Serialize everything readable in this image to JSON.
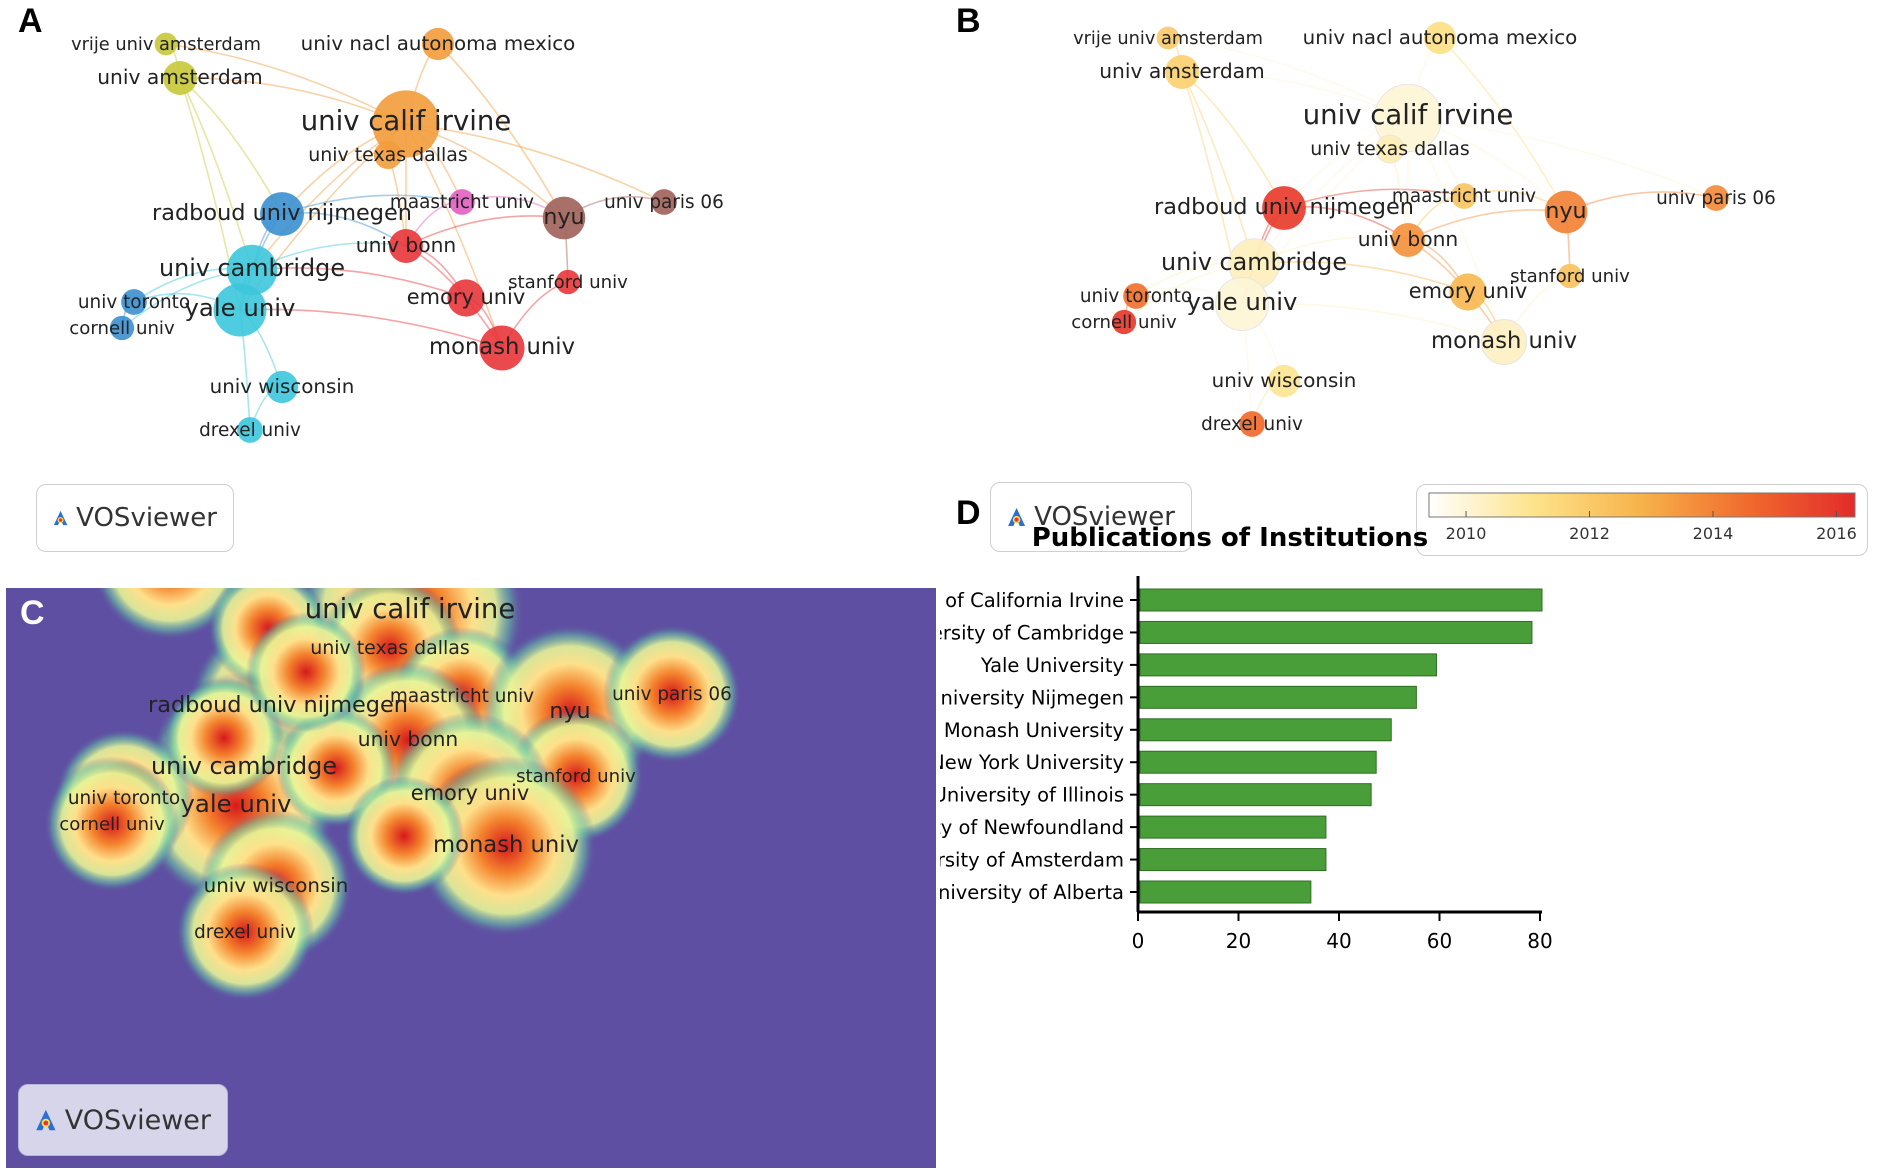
{
  "panels": {
    "a": {
      "letter": "A"
    },
    "b": {
      "letter": "B"
    },
    "c": {
      "letter": "C"
    },
    "d": {
      "letter": "D"
    }
  },
  "vosviewer": {
    "label": "VOSviewer"
  },
  "network": {
    "cluster_colors": {
      "orange": "#f39c3c",
      "yellow": "#c8c83a",
      "blue": "#3a8fd0",
      "cyan": "#3cc6dc",
      "green": "#46b84a",
      "purple": "#b07ce0",
      "red": "#e8353a",
      "brown": "#a0605a",
      "pink": "#e060c0"
    },
    "nodes": [
      {
        "id": "vrije",
        "label": "vrije univ amsterdam",
        "cluster": "yellow",
        "weight": 4,
        "year": 2012.0
      },
      {
        "id": "amsterdam",
        "label": "univ amsterdam",
        "cluster": "yellow",
        "weight": 14,
        "year": 2011.8
      },
      {
        "id": "nacl",
        "label": "univ nacl autonoma mexico",
        "cluster": "orange",
        "weight": 12,
        "year": 2011.2
      },
      {
        "id": "irvine",
        "label": "univ calif irvine",
        "cluster": "orange",
        "weight": 80,
        "year": 2010.0
      },
      {
        "id": "texas",
        "label": "univ texas dallas",
        "cluster": "orange",
        "weight": 8,
        "year": 2010.5
      },
      {
        "id": "radboud",
        "label": "radboud univ nijmegen",
        "cluster": "blue",
        "weight": 28,
        "year": 2015.8
      },
      {
        "id": "maastricht",
        "label": "maastricht univ",
        "cluster": "pink",
        "weight": 6,
        "year": 2012.2
      },
      {
        "id": "nyu",
        "label": "nyu",
        "cluster": "brown",
        "weight": 26,
        "year": 2014.0
      },
      {
        "id": "paris",
        "label": "univ paris 06",
        "cluster": "brown",
        "weight": 6,
        "year": 2013.8
      },
      {
        "id": "bonn",
        "label": "univ bonn",
        "cluster": "red",
        "weight": 14,
        "year": 2013.6
      },
      {
        "id": "cambridge",
        "label": "univ cambridge",
        "cluster": "cyan",
        "weight": 40,
        "year": 2010.4
      },
      {
        "id": "yale",
        "label": "yale univ",
        "cluster": "cyan",
        "weight": 45,
        "year": 2010.0
      },
      {
        "id": "toronto",
        "label": "univ toronto",
        "cluster": "blue",
        "weight": 6,
        "year": 2014.4
      },
      {
        "id": "cornell",
        "label": "cornell univ",
        "cluster": "blue",
        "weight": 5,
        "year": 2015.9
      },
      {
        "id": "stanford",
        "label": "stanford univ",
        "cluster": "red",
        "weight": 5,
        "year": 2012.3
      },
      {
        "id": "emory",
        "label": "emory univ",
        "cluster": "red",
        "weight": 18,
        "year": 2012.6
      },
      {
        "id": "monash",
        "label": "monash univ",
        "cluster": "red",
        "weight": 30,
        "year": 2010.3
      },
      {
        "id": "wisconsin",
        "label": "univ wisconsin",
        "cluster": "cyan",
        "weight": 12,
        "year": 2011.0
      },
      {
        "id": "drexel",
        "label": "drexel univ",
        "cluster": "cyan",
        "weight": 6,
        "year": 2014.6
      }
    ]
  },
  "overlay_legend": {
    "ticks": [
      "2010",
      "2012",
      "2014",
      "2016"
    ],
    "min": 2009.4,
    "max": 2016.3,
    "colors": [
      "#ffffff",
      "#fde38a",
      "#f7b24a",
      "#f06a2d",
      "#e32b2b"
    ]
  },
  "chart_data": {
    "type": "bar",
    "orientation": "horizontal",
    "title": "Publications of Institutions",
    "categories": [
      "University of California Irvine",
      "University of Cambridge",
      "Yale University",
      "Radboud University Nijmegen",
      "Monash University",
      "New York University",
      "University of Illinois",
      "Memorial University of Newfoundland",
      "University of Amsterdam",
      "University of Alberta"
    ],
    "values": [
      80,
      78,
      59,
      55,
      50,
      47,
      46,
      37,
      37,
      34
    ],
    "xlim": [
      0,
      80
    ],
    "xticks": [
      "0",
      "20",
      "40",
      "60",
      "80"
    ],
    "bar_color": "#4a9e3a",
    "xlabel": "",
    "ylabel": ""
  }
}
